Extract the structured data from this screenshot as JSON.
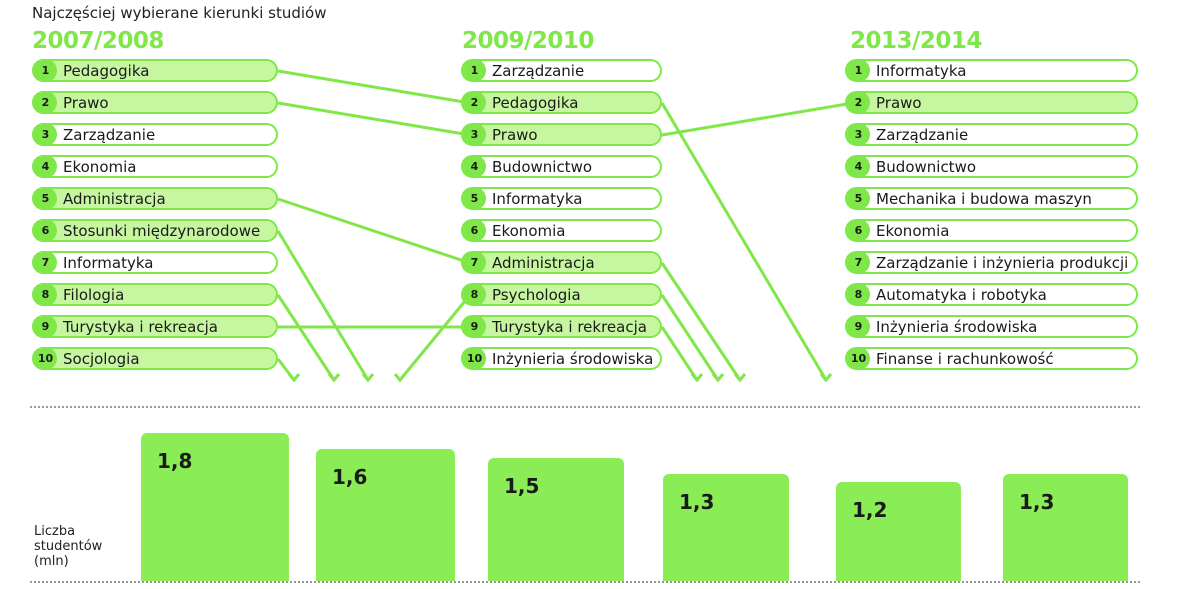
{
  "title": "Najczęściej wybierane kierunki studiów",
  "colors": {
    "accent": "#7fe848",
    "highlight": "#c6f7a0",
    "bar": "#8aed55"
  },
  "rankings": [
    {
      "year": "2007/2008",
      "items": [
        {
          "rank": "1",
          "name": "Pedagogika",
          "hl": true
        },
        {
          "rank": "2",
          "name": "Prawo",
          "hl": true
        },
        {
          "rank": "3",
          "name": "Zarządzanie",
          "hl": false
        },
        {
          "rank": "4",
          "name": "Ekonomia",
          "hl": false
        },
        {
          "rank": "5",
          "name": "Administracja",
          "hl": true
        },
        {
          "rank": "6",
          "name": "Stosunki międzynarodowe",
          "hl": true
        },
        {
          "rank": "7",
          "name": "Informatyka",
          "hl": false
        },
        {
          "rank": "8",
          "name": "Filologia",
          "hl": true
        },
        {
          "rank": "9",
          "name": "Turystyka i rekreacja",
          "hl": true
        },
        {
          "rank": "10",
          "name": "Socjologia",
          "hl": true
        }
      ]
    },
    {
      "year": "2009/2010",
      "items": [
        {
          "rank": "1",
          "name": "Zarządzanie",
          "hl": false
        },
        {
          "rank": "2",
          "name": "Pedagogika",
          "hl": true
        },
        {
          "rank": "3",
          "name": "Prawo",
          "hl": true
        },
        {
          "rank": "4",
          "name": "Budownictwo",
          "hl": false
        },
        {
          "rank": "5",
          "name": "Informatyka",
          "hl": false
        },
        {
          "rank": "6",
          "name": "Ekonomia",
          "hl": false
        },
        {
          "rank": "7",
          "name": "Administracja",
          "hl": true
        },
        {
          "rank": "8",
          "name": "Psychologia",
          "hl": true
        },
        {
          "rank": "9",
          "name": "Turystyka i rekreacja",
          "hl": true
        },
        {
          "rank": "10",
          "name": "Inżynieria środowiska",
          "hl": false
        }
      ]
    },
    {
      "year": "2013/2014",
      "items": [
        {
          "rank": "1",
          "name": "Informatyka",
          "hl": false
        },
        {
          "rank": "2",
          "name": "Prawo",
          "hl": true
        },
        {
          "rank": "3",
          "name": "Zarządzanie",
          "hl": false
        },
        {
          "rank": "4",
          "name": "Budownictwo",
          "hl": false
        },
        {
          "rank": "5",
          "name": "Mechanika i budowa maszyn",
          "hl": false
        },
        {
          "rank": "6",
          "name": "Ekonomia",
          "hl": false
        },
        {
          "rank": "7",
          "name": "Zarządzanie i inżynieria produkcji",
          "hl": false
        },
        {
          "rank": "8",
          "name": "Automatyka i robotyka",
          "hl": false
        },
        {
          "rank": "9",
          "name": "Inżynieria środowiska",
          "hl": false
        },
        {
          "rank": "10",
          "name": "Finanse i rachunkowość",
          "hl": false
        }
      ]
    }
  ],
  "chart_data": {
    "type": "bar",
    "title": "Najczęściej wybierane kierunki studiów",
    "ylabel": "Liczba studentów (mln)",
    "values": [
      1.8,
      1.6,
      1.5,
      1.3,
      1.2,
      1.3
    ],
    "value_labels": [
      "1,8",
      "1,6",
      "1,5",
      "1,3",
      "1,2",
      "1,3"
    ],
    "ylim": [
      0,
      1.8
    ],
    "grid": false
  }
}
